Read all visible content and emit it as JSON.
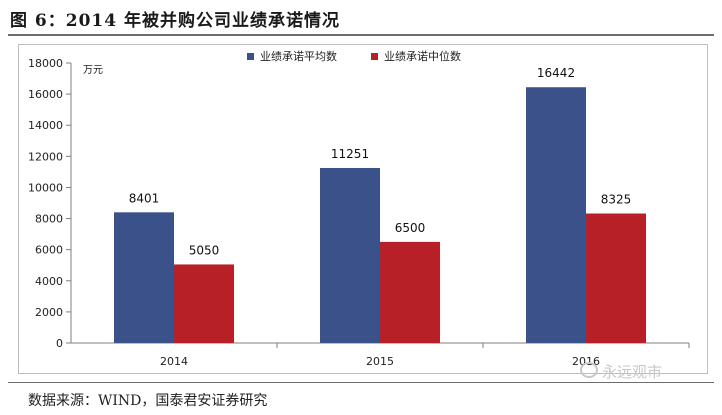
{
  "figure_title": "图 6：2014 年被并购公司业绩承诺情况",
  "source_note": "数据来源：WIND，国泰君安证券研究",
  "watermark": "永远观市",
  "chart_data": {
    "type": "bar",
    "title": "",
    "xlabel": "",
    "ylabel": "",
    "unit_label": "万元",
    "categories": [
      "2014",
      "2015",
      "2016"
    ],
    "series": [
      {
        "name": "业绩承诺平均数",
        "values": [
          8401,
          11251,
          16442
        ],
        "color": "#3a5289"
      },
      {
        "name": "业绩承诺中位数",
        "values": [
          5050,
          6500,
          8325
        ],
        "color": "#b82027"
      }
    ],
    "ylim": [
      0,
      18000
    ],
    "yticks": [
      0,
      2000,
      4000,
      6000,
      8000,
      10000,
      12000,
      14000,
      16000,
      18000
    ],
    "grid": false,
    "legend_position": "top",
    "data_labels": true
  }
}
